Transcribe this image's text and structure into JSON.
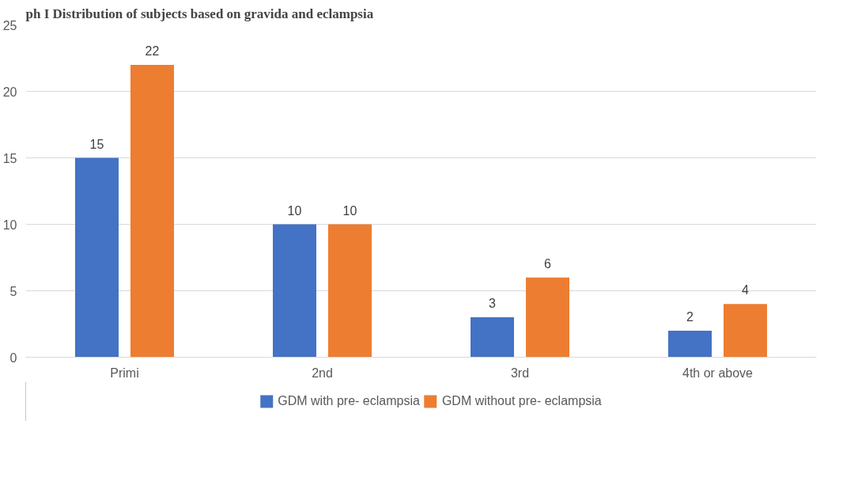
{
  "chart_data": {
    "type": "bar",
    "title": "ph I Distribution of subjects based on gravida and eclampsia",
    "categories": [
      "Primi",
      "2nd",
      "3rd",
      "4th or above"
    ],
    "series": [
      {
        "name": "GDM with pre- eclampsia",
        "color": "#4472c4",
        "values": [
          15,
          10,
          3,
          2
        ]
      },
      {
        "name": "GDM without pre- eclampsia",
        "color": "#ed7d31",
        "values": [
          22,
          10,
          6,
          4
        ]
      }
    ],
    "ylim": [
      0,
      25
    ],
    "yticks": [
      0,
      5,
      10,
      15,
      20,
      25
    ],
    "grid": "y",
    "legend": "bottom",
    "data_labels": true
  }
}
